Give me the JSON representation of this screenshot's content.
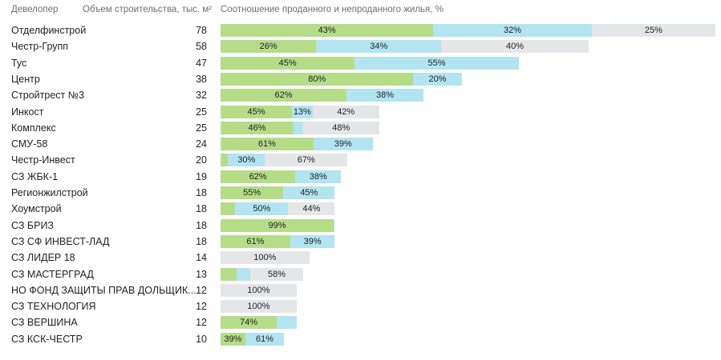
{
  "header": {
    "developer": "Девелопер",
    "volume": "Объем строительства, тыс. м²",
    "ratio": "Соотношение проданного и непроданного жилья, %"
  },
  "colors": {
    "sold": "#b5dd88",
    "part": "#b3e4f2",
    "unsold": "#e4e6e8"
  },
  "chart_data": {
    "type": "bar",
    "orientation": "horizontal",
    "stacked": true,
    "xmax": 78,
    "categories": [
      "Отделфинстрой",
      "Честр-Групп",
      "Тус",
      "Центр",
      "Стройтрест №3",
      "Инкост",
      "Комплекс",
      "СМУ-58",
      "Честр-Инвест",
      "СЗ ЖБК-1",
      "Регионжилстрой",
      "Хоумстрой",
      "СЗ БРИЗ",
      "СЗ СФ ИНВЕСТ-ЛАД",
      "СЗ ЛИДЕР 18",
      "СЗ МАСТЕРГРАД",
      "НО ФОНД ЗАЩИТЫ ПРАВ ДОЛЬЩИК...",
      "СЗ ТЕХНОЛОГИЯ",
      "СЗ ВЕРШИНА",
      "СЗ КСК-ЧЕСТР"
    ],
    "volume": [
      78,
      58,
      47,
      38,
      32,
      25,
      25,
      24,
      20,
      19,
      18,
      18,
      18,
      18,
      14,
      13,
      12,
      12,
      12,
      10
    ],
    "shares": [
      [
        43,
        32,
        25
      ],
      [
        26,
        34,
        40
      ],
      [
        45,
        55,
        0
      ],
      [
        80,
        20,
        0
      ],
      [
        62,
        38,
        0
      ],
      [
        45,
        13,
        42
      ],
      [
        46,
        6,
        48
      ],
      [
        61,
        39,
        0
      ],
      [
        6,
        30,
        67
      ],
      [
        62,
        38,
        0
      ],
      [
        55,
        45,
        0
      ],
      [
        14,
        50,
        44
      ],
      [
        99,
        1,
        0
      ],
      [
        61,
        39,
        0
      ],
      [
        0,
        0,
        100
      ],
      [
        18,
        15,
        58
      ],
      [
        0,
        0,
        100
      ],
      [
        0,
        0,
        100
      ],
      [
        74,
        26,
        0
      ],
      [
        39,
        61,
        0
      ]
    ],
    "labels": [
      [
        "43%",
        "32%",
        "25%"
      ],
      [
        "26%",
        "34%",
        "40%"
      ],
      [
        "45%",
        "55%",
        ""
      ],
      [
        "80%",
        "20%",
        ""
      ],
      [
        "62%",
        "38%",
        ""
      ],
      [
        "45%",
        "13%",
        "42%"
      ],
      [
        "46%",
        "",
        "48%"
      ],
      [
        "61%",
        "39%",
        ""
      ],
      [
        "",
        "30%",
        "67%"
      ],
      [
        "62%",
        "38%",
        ""
      ],
      [
        "55%",
        "45%",
        ""
      ],
      [
        "",
        "50%",
        "44%"
      ],
      [
        "99%",
        "",
        ""
      ],
      [
        "61%",
        "39%",
        ""
      ],
      [
        "",
        "",
        "100%"
      ],
      [
        "",
        "",
        "58%"
      ],
      [
        "",
        "",
        "100%"
      ],
      [
        "",
        "",
        "100%"
      ],
      [
        "74%",
        "",
        ""
      ],
      [
        "39%",
        "61%",
        ""
      ]
    ]
  }
}
